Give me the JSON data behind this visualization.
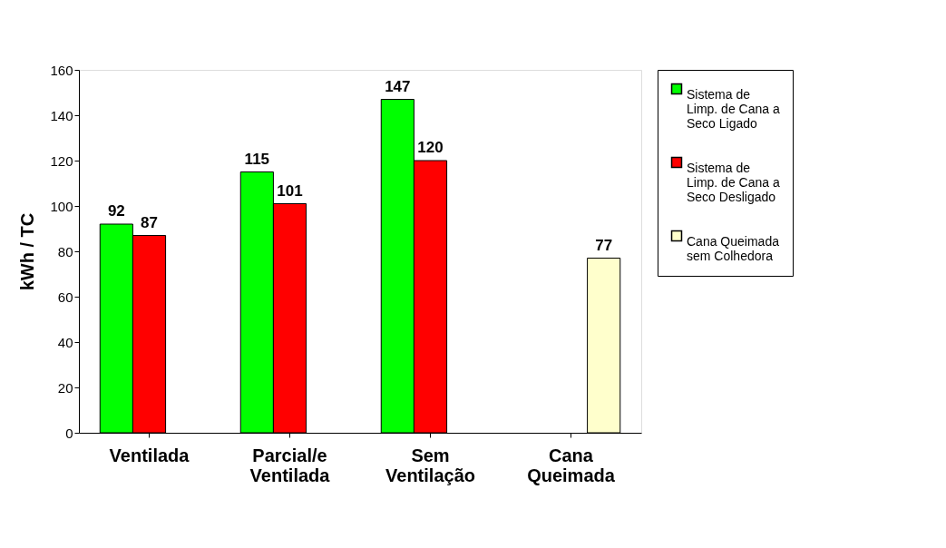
{
  "chart_data": {
    "type": "bar",
    "ylabel": "kWh / TC",
    "categories": [
      "Ventilada",
      "Parcial/e\nVentilada",
      "Sem\nVentilação",
      "Cana\nQueimada"
    ],
    "series": [
      {
        "name": "Sistema de\nLimp. de Cana a\nSeco Ligado",
        "color": "#00ff00",
        "values": [
          92,
          115,
          147,
          null
        ]
      },
      {
        "name": "Sistema de\nLimp. de Cana a\nSeco Desligado",
        "color": "#ff0000",
        "values": [
          87,
          101,
          120,
          null
        ]
      },
      {
        "name": "Cana Queimada\nsem Colhedora",
        "color": "#ffffcc",
        "values": [
          null,
          null,
          null,
          77
        ]
      }
    ],
    "ylim": [
      0,
      160
    ],
    "yticks": [
      0,
      20,
      40,
      60,
      80,
      100,
      120,
      140,
      160
    ],
    "grid": false,
    "legend": "right",
    "data_labels": true
  }
}
